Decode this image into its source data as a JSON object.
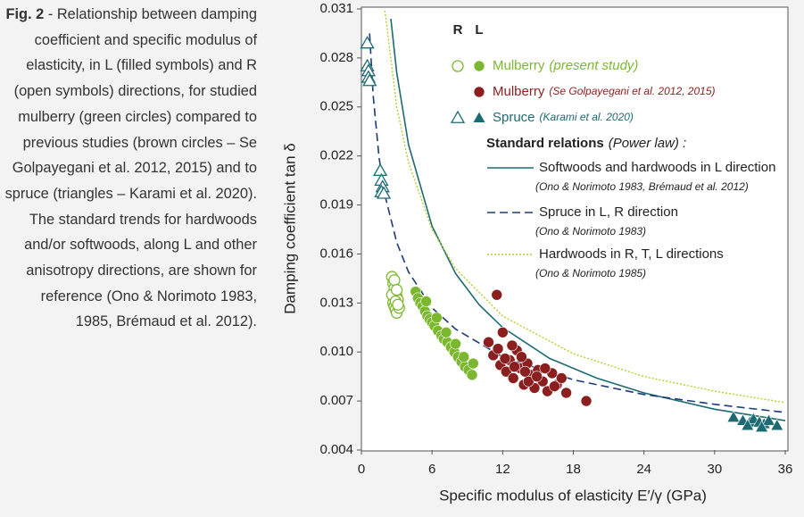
{
  "caption": {
    "label": "Fig. 2",
    "text": "- Relationship between damping coefficient and specific modulus of elasticity, in L (filled symbols) and R (open symbols) directions, for studied mulberry (green circles) compared to previous studies (brown circles – Se Golpayegani et al. 2012, 2015) and to spruce (triangles – Karami et al. 2020). The standard trends for hardwoods and/or softwoods, along L and other anisotropy directions, are shown for reference (Ono & Norimoto 1983, 1985, Brémaud et al. 2012)."
  },
  "chart_data": {
    "type": "scatter",
    "x_label": "Specific modulus of elasticity E′/γ (GPa)",
    "y_label": "Damping coefficient tan δ",
    "xlim": [
      0,
      36
    ],
    "xticks": [
      0,
      6,
      12,
      18,
      24,
      30,
      36
    ],
    "ylim": [
      0.004,
      0.031
    ],
    "yticks": [
      0.004,
      0.007,
      {
        "value": 0.01,
        "label": "0.010"
      },
      0.013,
      0.016,
      0.019,
      0.022,
      0.025,
      0.028,
      0.031
    ],
    "legend_header": [
      "R",
      "L"
    ],
    "series": [
      {
        "name": "Mulberry",
        "source": "(present study)",
        "color": "#7cb82f",
        "marker": "circle",
        "R": {
          "x": [
            2.6,
            2.7,
            2.8,
            2.9,
            3.0,
            3.1,
            2.7,
            2.8,
            2.9,
            3.0,
            3.2,
            2.6,
            2.8,
            3.0,
            2.9,
            3.1
          ],
          "values": [
            0.0146,
            0.0142,
            0.0139,
            0.0136,
            0.0134,
            0.0132,
            0.013,
            0.0128,
            0.0126,
            0.0124,
            0.0127,
            0.0135,
            0.0144,
            0.0138,
            0.0131,
            0.0129
          ]
        },
        "L": {
          "x": [
            4.6,
            4.8,
            5.0,
            5.2,
            5.4,
            5.6,
            5.8,
            6.0,
            6.2,
            6.5,
            6.8,
            7.0,
            7.3,
            7.6,
            7.9,
            8.2,
            8.5,
            8.8,
            9.1,
            9.4,
            5.5,
            6.4,
            7.2,
            8.0,
            8.7,
            9.5
          ],
          "values": [
            0.0137,
            0.0133,
            0.013,
            0.0128,
            0.0125,
            0.0122,
            0.012,
            0.0118,
            0.0116,
            0.0113,
            0.011,
            0.0108,
            0.0106,
            0.0103,
            0.01,
            0.0097,
            0.0094,
            0.0091,
            0.0089,
            0.0086,
            0.0131,
            0.0121,
            0.0112,
            0.0105,
            0.0097,
            0.0093
          ]
        }
      },
      {
        "name": "Mulberry",
        "source": "(Se Golpayegani et al. 2012, 2015)",
        "color": "#8b1f1f",
        "marker": "circle",
        "L": {
          "x": [
            10.8,
            11.2,
            11.5,
            11.8,
            12.0,
            12.3,
            12.6,
            12.9,
            13.2,
            13.5,
            13.8,
            14.1,
            14.4,
            14.7,
            15.0,
            15.4,
            15.8,
            16.2,
            16.6,
            17.0,
            17.4,
            19.1,
            11.6,
            12.2,
            13.0,
            13.6,
            14.2,
            14.9,
            15.6,
            16.4,
            12.8,
            13.9
          ],
          "values": [
            0.0106,
            0.0098,
            0.0135,
            0.0092,
            0.0112,
            0.0088,
            0.0095,
            0.0084,
            0.0101,
            0.009,
            0.008,
            0.0093,
            0.0086,
            0.0078,
            0.0089,
            0.0082,
            0.0076,
            0.0087,
            0.008,
            0.0084,
            0.0075,
            0.007,
            0.0102,
            0.0096,
            0.0091,
            0.0097,
            0.0082,
            0.0085,
            0.009,
            0.0079,
            0.0104,
            0.0088
          ]
        }
      },
      {
        "name": "Spruce",
        "source": "(Karami et al. 2020)",
        "color": "#1d6b72",
        "marker": "triangle",
        "R": {
          "x": [
            0.5,
            0.5,
            0.6,
            0.6,
            0.7,
            1.6,
            1.7,
            1.8,
            1.7,
            1.9
          ],
          "values": [
            0.0289,
            0.0275,
            0.0272,
            0.0268,
            0.0266,
            0.0211,
            0.0205,
            0.0201,
            0.0198,
            0.0197
          ]
        },
        "L": {
          "x": [
            31.6,
            32.4,
            33.0,
            33.3,
            33.8,
            34.2,
            34.6,
            35.3,
            32.8,
            34.0
          ],
          "values": [
            0.006,
            0.0058,
            0.0057,
            0.0059,
            0.0057,
            0.0056,
            0.0058,
            0.0055,
            0.0055,
            0.0054
          ]
        }
      }
    ],
    "relations": {
      "title": "Standard relations",
      "subtitle": "(Power law) :",
      "lines": [
        {
          "name": "Softwoods and hardwoods in L direction",
          "source": "(Ono & Norimoto 1983, Brémaud et al. 2012)",
          "color": "#1d6b72",
          "style": "solid",
          "x": [
            2.5,
            3,
            4,
            6,
            8,
            10,
            12,
            16,
            20,
            24,
            30,
            36
          ],
          "values": [
            0.0304,
            0.0271,
            0.0227,
            0.0177,
            0.0148,
            0.0129,
            0.0115,
            0.0096,
            0.0084,
            0.0075,
            0.0065,
            0.0058
          ]
        },
        {
          "name": "Spruce in L, R direction",
          "source": "(Ono & Norimoto 1983)",
          "color": "#1f3a78",
          "style": "dashed",
          "x": [
            0.7,
            1,
            1.5,
            2,
            3,
            4,
            6,
            8,
            12,
            18,
            24,
            30,
            36
          ],
          "values": [
            0.0295,
            0.0257,
            0.0219,
            0.0196,
            0.0167,
            0.0149,
            0.0127,
            0.0114,
            0.0097,
            0.0083,
            0.0074,
            0.0068,
            0.0063
          ]
        },
        {
          "name": "Hardwoods in R, T, L directions",
          "source": "(Ono & Norimoto 1985)",
          "color": "#b8cc2a",
          "style": "dotted",
          "x": [
            2,
            3,
            4,
            6,
            8,
            12,
            18,
            24,
            30,
            36
          ],
          "values": [
            0.0309,
            0.025,
            0.0216,
            0.0175,
            0.0151,
            0.0122,
            0.0099,
            0.0085,
            0.0076,
            0.0069
          ]
        }
      ]
    }
  }
}
